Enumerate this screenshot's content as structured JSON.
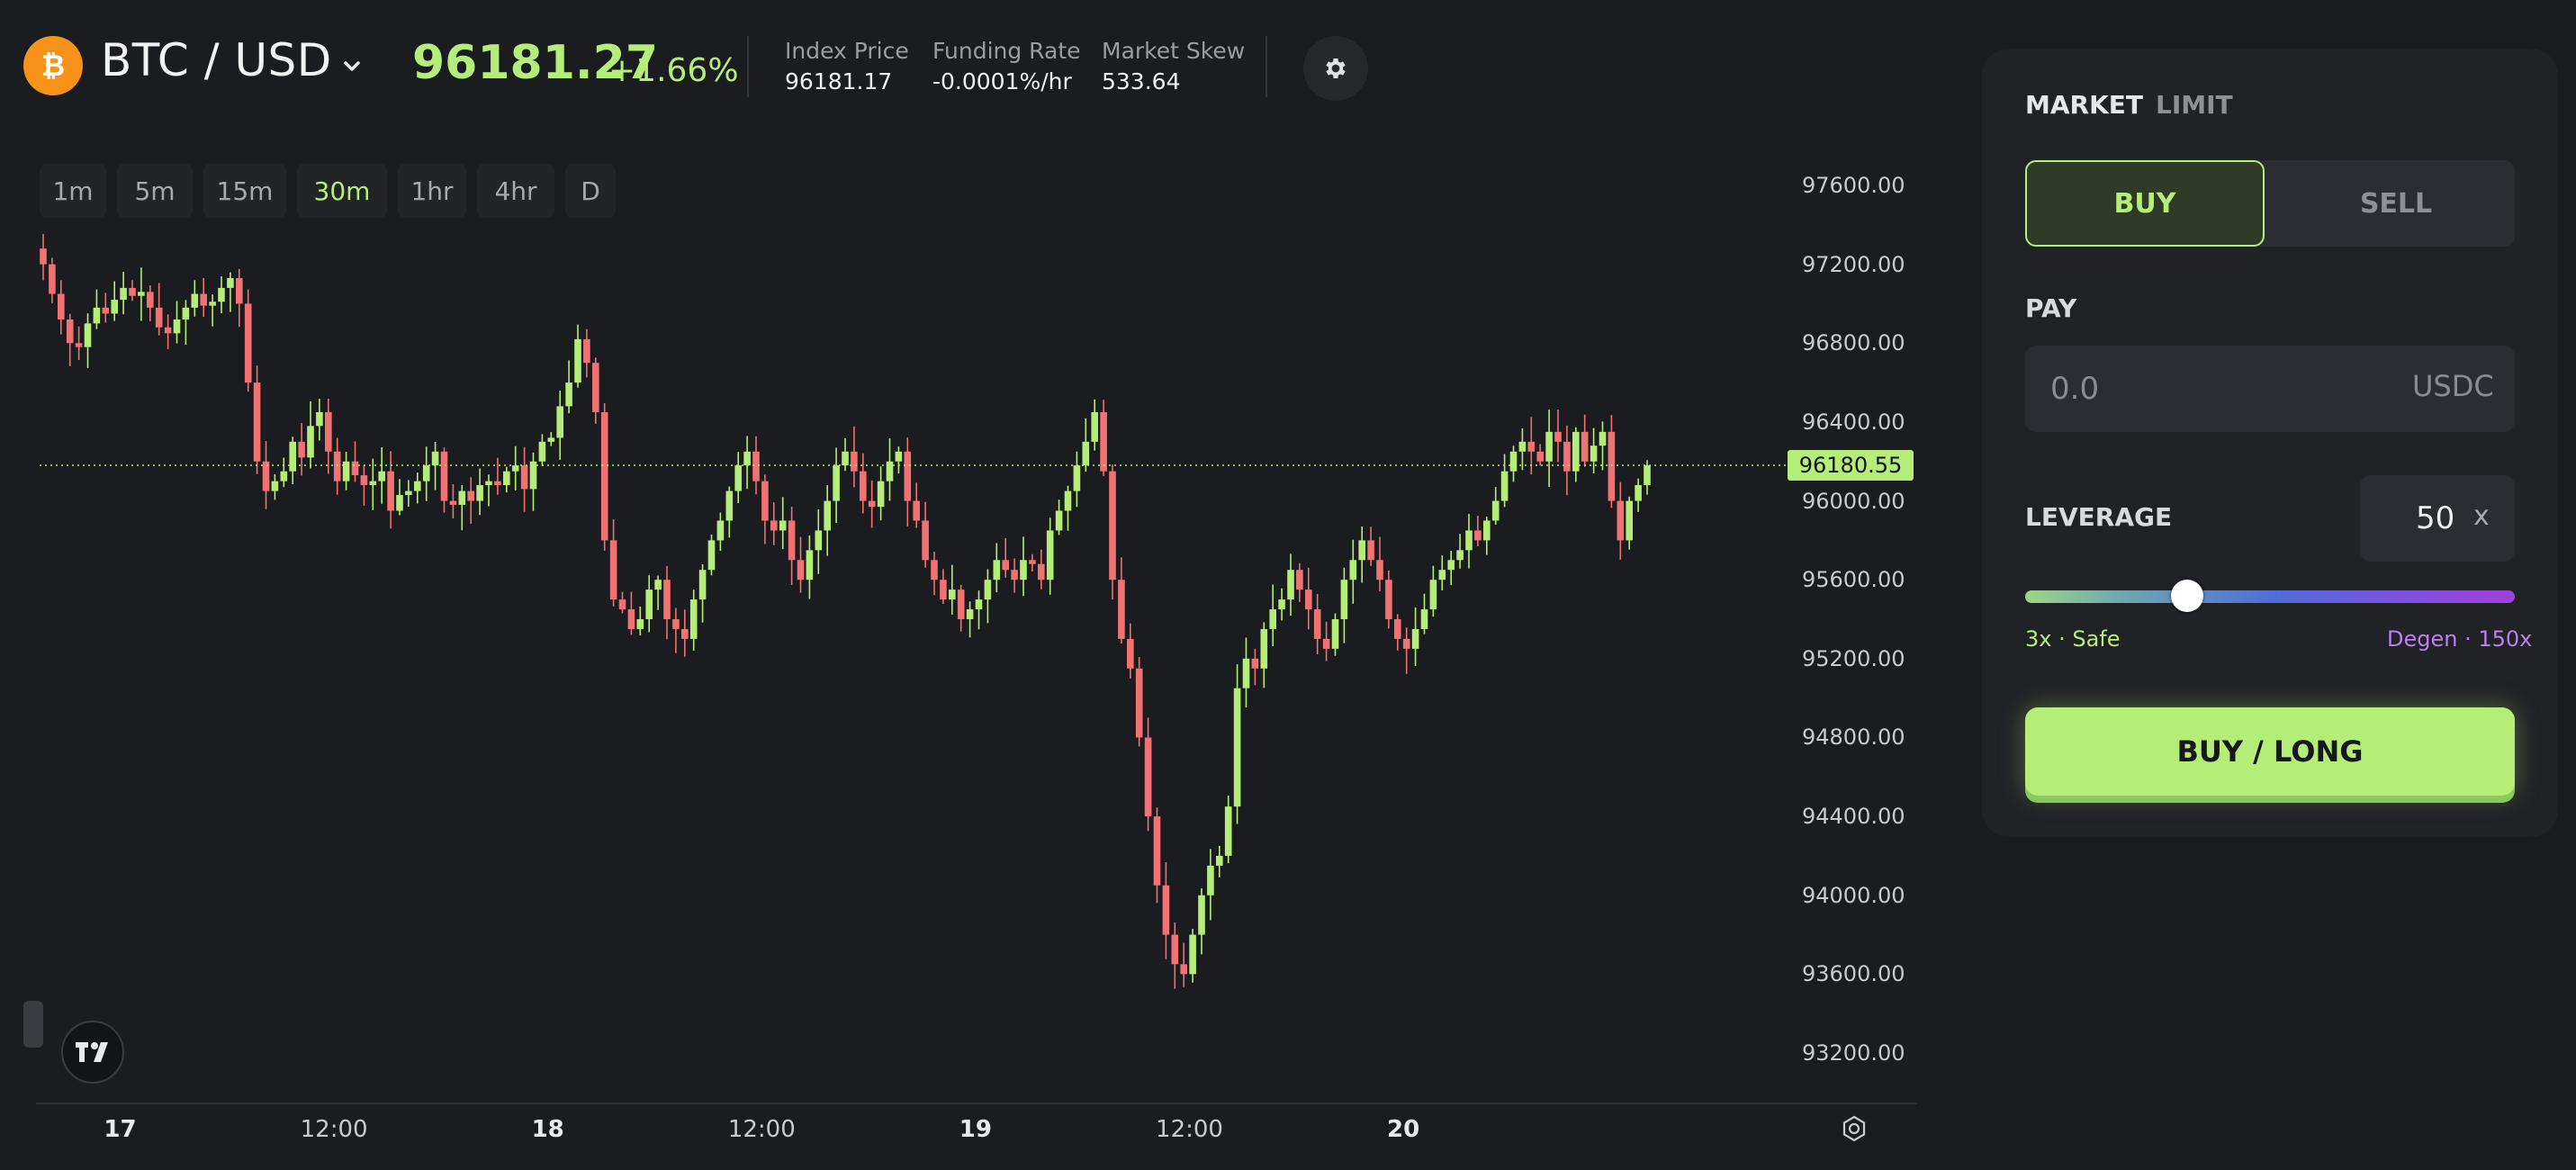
{
  "header": {
    "pair": "BTC / USD",
    "price": "96181.27",
    "change": "+1.66%",
    "stats": [
      {
        "label": "Index Price",
        "value": "96181.17"
      },
      {
        "label": "Funding Rate",
        "value": "-0.0001%/hr"
      },
      {
        "label": "Market Skew",
        "value": "533.64"
      }
    ]
  },
  "timeframes": [
    {
      "label": "1m",
      "active": false
    },
    {
      "label": "5m",
      "active": false
    },
    {
      "label": "15m",
      "active": false
    },
    {
      "label": "30m",
      "active": true
    },
    {
      "label": "1hr",
      "active": false
    },
    {
      "label": "4hr",
      "active": false
    },
    {
      "label": "D",
      "active": false
    }
  ],
  "chart_data": {
    "type": "candlestick",
    "yticks": [
      "97600.00",
      "97200.00",
      "96800.00",
      "96400.00",
      "96000.00",
      "95600.00",
      "95200.00",
      "94800.00",
      "94400.00",
      "94000.00",
      "93600.00",
      "93200.00"
    ],
    "ylim": [
      93000,
      97800
    ],
    "xticks": [
      {
        "label": "17",
        "bar": 5,
        "day": true
      },
      {
        "label": "12:00",
        "bar": 29,
        "day": false
      },
      {
        "label": "18",
        "bar": 53,
        "day": true
      },
      {
        "label": "12:00",
        "bar": 77,
        "day": false
      },
      {
        "label": "19",
        "bar": 101,
        "day": true
      },
      {
        "label": "12:00",
        "bar": 125,
        "day": false
      },
      {
        "label": "20",
        "bar": 149,
        "day": true
      }
    ],
    "current_price": "96180.55",
    "up_color": "#b4ee78",
    "down_color": "#f07272",
    "closes": [
      97200,
      97050,
      96920,
      96800,
      96780,
      96900,
      96980,
      96950,
      97020,
      97080,
      97040,
      97060,
      96980,
      96880,
      96850,
      96920,
      96980,
      97050,
      96990,
      97010,
      97080,
      97130,
      97000,
      96600,
      96200,
      96050,
      96100,
      96150,
      96300,
      96220,
      96380,
      96450,
      96250,
      96100,
      96200,
      96130,
      96080,
      96100,
      96150,
      95950,
      96030,
      96050,
      96100,
      96180,
      96250,
      96000,
      95980,
      96050,
      96000,
      96080,
      96100,
      96080,
      96150,
      96180,
      96060,
      96200,
      96300,
      96320,
      96480,
      96600,
      96820,
      96700,
      96450,
      95800,
      95500,
      95450,
      95350,
      95400,
      95550,
      95600,
      95400,
      95350,
      95300,
      95500,
      95650,
      95800,
      95900,
      96050,
      96180,
      96250,
      96100,
      95900,
      95850,
      95900,
      95700,
      95600,
      95750,
      95850,
      96000,
      96180,
      96250,
      96150,
      96000,
      95970,
      96100,
      96200,
      96250,
      96000,
      95900,
      95700,
      95600,
      95500,
      95550,
      95400,
      95450,
      95500,
      95600,
      95700,
      95650,
      95600,
      95700,
      95680,
      95600,
      95850,
      95950,
      96050,
      96180,
      96300,
      96450,
      96150,
      95600,
      95300,
      95150,
      94800,
      94400,
      94050,
      93800,
      93650,
      93600,
      93800,
      94000,
      94150,
      94200,
      94450,
      95050,
      95200,
      95150,
      95350,
      95450,
      95500,
      95650,
      95550,
      95450,
      95300,
      95250,
      95400,
      95600,
      95700,
      95800,
      95700,
      95600,
      95400,
      95300,
      95250,
      95350,
      95450,
      95600,
      95650,
      95700,
      95750,
      95850,
      95800,
      95900,
      96000,
      96150,
      96250,
      96300,
      96250,
      96200,
      96350,
      96300,
      96150,
      96350,
      96200,
      96280,
      96350,
      96000,
      95800,
      96000,
      96080,
      96180
    ]
  },
  "panel": {
    "tabs": [
      {
        "label": "MARKET",
        "active": true
      },
      {
        "label": "LIMIT",
        "active": false
      }
    ],
    "buy_label": "BUY",
    "sell_label": "SELL",
    "pay_label": "PAY",
    "pay_placeholder": "0.0",
    "pay_unit": "USDC",
    "leverage_label": "LEVERAGE",
    "leverage_value": "50",
    "leverage_x": "x",
    "leverage_min": "3x · Safe",
    "leverage_max": "Degen · 150x",
    "leverage_fraction": 0.32,
    "cta_label": "BUY / LONG"
  }
}
